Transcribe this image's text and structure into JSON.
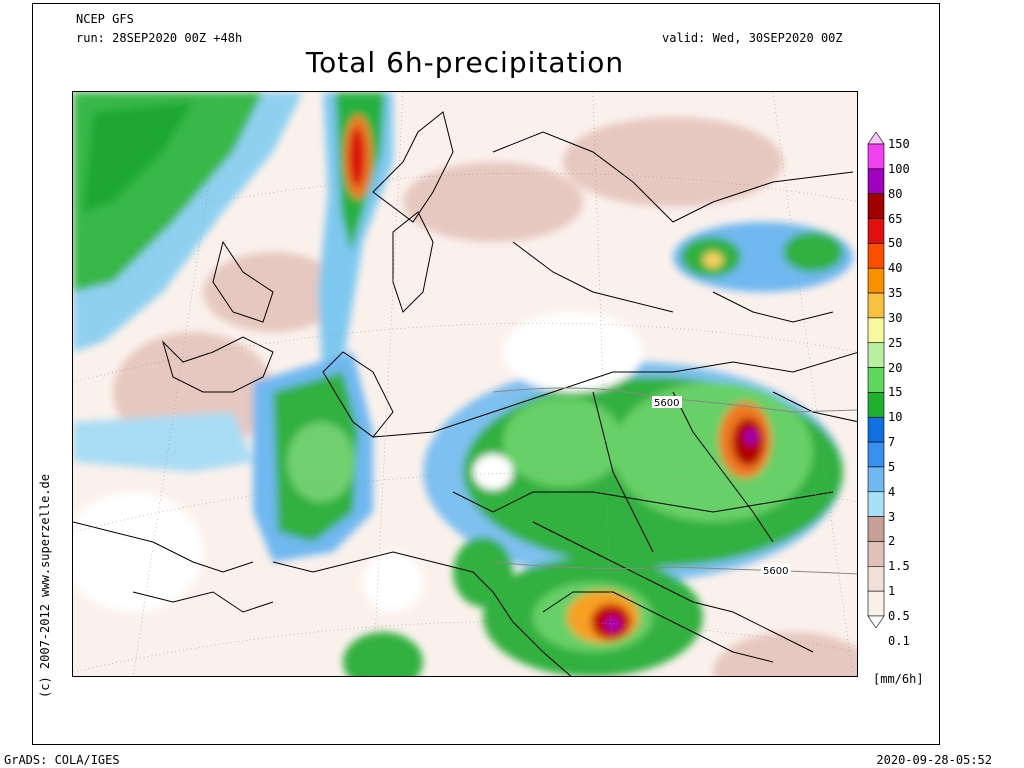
{
  "header": {
    "model": "NCEP GFS",
    "run": "run: 28SEP2020 00Z +48h",
    "valid": "valid: Wed, 30SEP2020 00Z",
    "title": "Total 6h-precipitation"
  },
  "credit": "(c) 2007-2012 www.superzelle.de",
  "footer": {
    "software": "GrADS: COLA/IGES",
    "timestamp": "2020-09-28-05:52"
  },
  "contours": [
    "5600",
    "5600"
  ],
  "legend": {
    "unit": "[mm/6h]",
    "levels": [
      {
        "label": "150",
        "color": "#f8c8f8"
      },
      {
        "label": "100",
        "color": "#f040f0"
      },
      {
        "label": "80",
        "color": "#a000c0"
      },
      {
        "label": "65",
        "color": "#a00000"
      },
      {
        "label": "50",
        "color": "#e01010"
      },
      {
        "label": "40",
        "color": "#f85000"
      },
      {
        "label": "35",
        "color": "#f89000"
      },
      {
        "label": "30",
        "color": "#f8c040"
      },
      {
        "label": "25",
        "color": "#f8f8a0"
      },
      {
        "label": "20",
        "color": "#b8f0a0"
      },
      {
        "label": "15",
        "color": "#60d860"
      },
      {
        "label": "10",
        "color": "#20b030"
      },
      {
        "label": "7",
        "color": "#1070e0"
      },
      {
        "label": "5",
        "color": "#3890f0"
      },
      {
        "label": "4",
        "color": "#70b8f0"
      },
      {
        "label": "3",
        "color": "#a8e0f8"
      },
      {
        "label": "2",
        "color": "#c8a098"
      },
      {
        "label": "1.5",
        "color": "#e0c0b8"
      },
      {
        "label": "1",
        "color": "#f0e0d8"
      },
      {
        "label": "0.5",
        "color": "#f8f0ea"
      },
      {
        "label": "0.1",
        "color": "#ffffff"
      }
    ]
  }
}
